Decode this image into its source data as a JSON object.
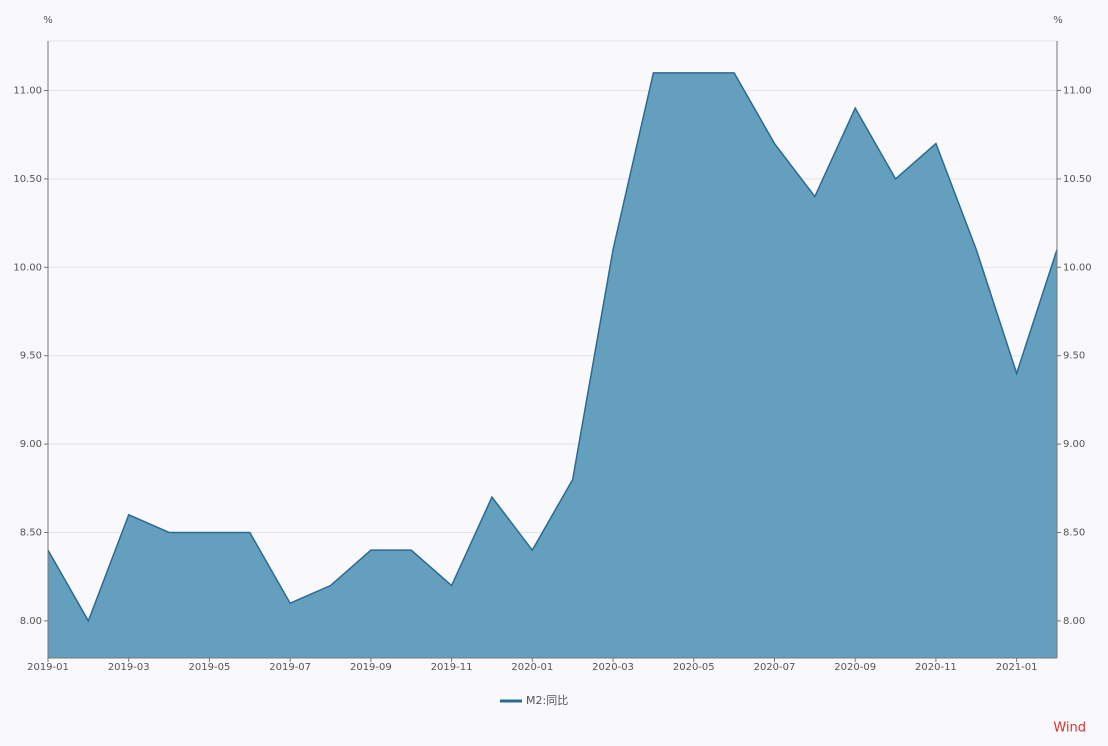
{
  "chart_data": {
    "type": "area",
    "y_unit": "%",
    "y2_unit": "%",
    "categories": [
      "2019-01",
      null,
      "2019-03",
      null,
      "2019-05",
      null,
      "2019-07",
      null,
      "2019-09",
      null,
      "2019-11",
      null,
      "2020-01",
      null,
      "2020-03",
      null,
      "2020-05",
      null,
      "2020-07",
      null,
      "2020-09",
      null,
      "2020-11",
      null,
      "2021-01",
      null
    ],
    "series": [
      {
        "name": "M2:同比",
        "color": "#2b6a93",
        "fill": "#649fbe",
        "values": [
          8.4,
          8.0,
          8.6,
          8.5,
          8.5,
          8.5,
          8.1,
          8.2,
          8.4,
          8.4,
          8.2,
          8.7,
          8.4,
          8.8,
          10.1,
          11.1,
          11.1,
          11.1,
          10.7,
          10.4,
          10.9,
          10.5,
          10.7,
          10.1,
          9.4,
          10.1
        ]
      }
    ],
    "ylim": [
      7.79,
      11.28
    ],
    "yticks": [
      {
        "value": 8,
        "label": "8.00"
      },
      {
        "value": 8.5,
        "label": "8.50"
      },
      {
        "value": 9,
        "label": "9.00"
      },
      {
        "value": 9.5,
        "label": "9.50"
      },
      {
        "value": 10,
        "label": "10.00"
      },
      {
        "value": 10.5,
        "label": "10.50"
      },
      {
        "value": 11,
        "label": "11.00"
      }
    ],
    "y2lim": [
      7.79,
      11.28
    ],
    "y2ticks": [
      {
        "value": 8,
        "label": "8.00"
      },
      {
        "value": 8.5,
        "label": "8.50"
      },
      {
        "value": 9,
        "label": "9.00"
      },
      {
        "value": 9.5,
        "label": "9.50"
      },
      {
        "value": 10,
        "label": "10.00"
      },
      {
        "value": 10.5,
        "label": "10.50"
      },
      {
        "value": 11,
        "label": "11.00"
      }
    ],
    "grid": true,
    "legend": "bottom",
    "watermark": "Wind"
  }
}
